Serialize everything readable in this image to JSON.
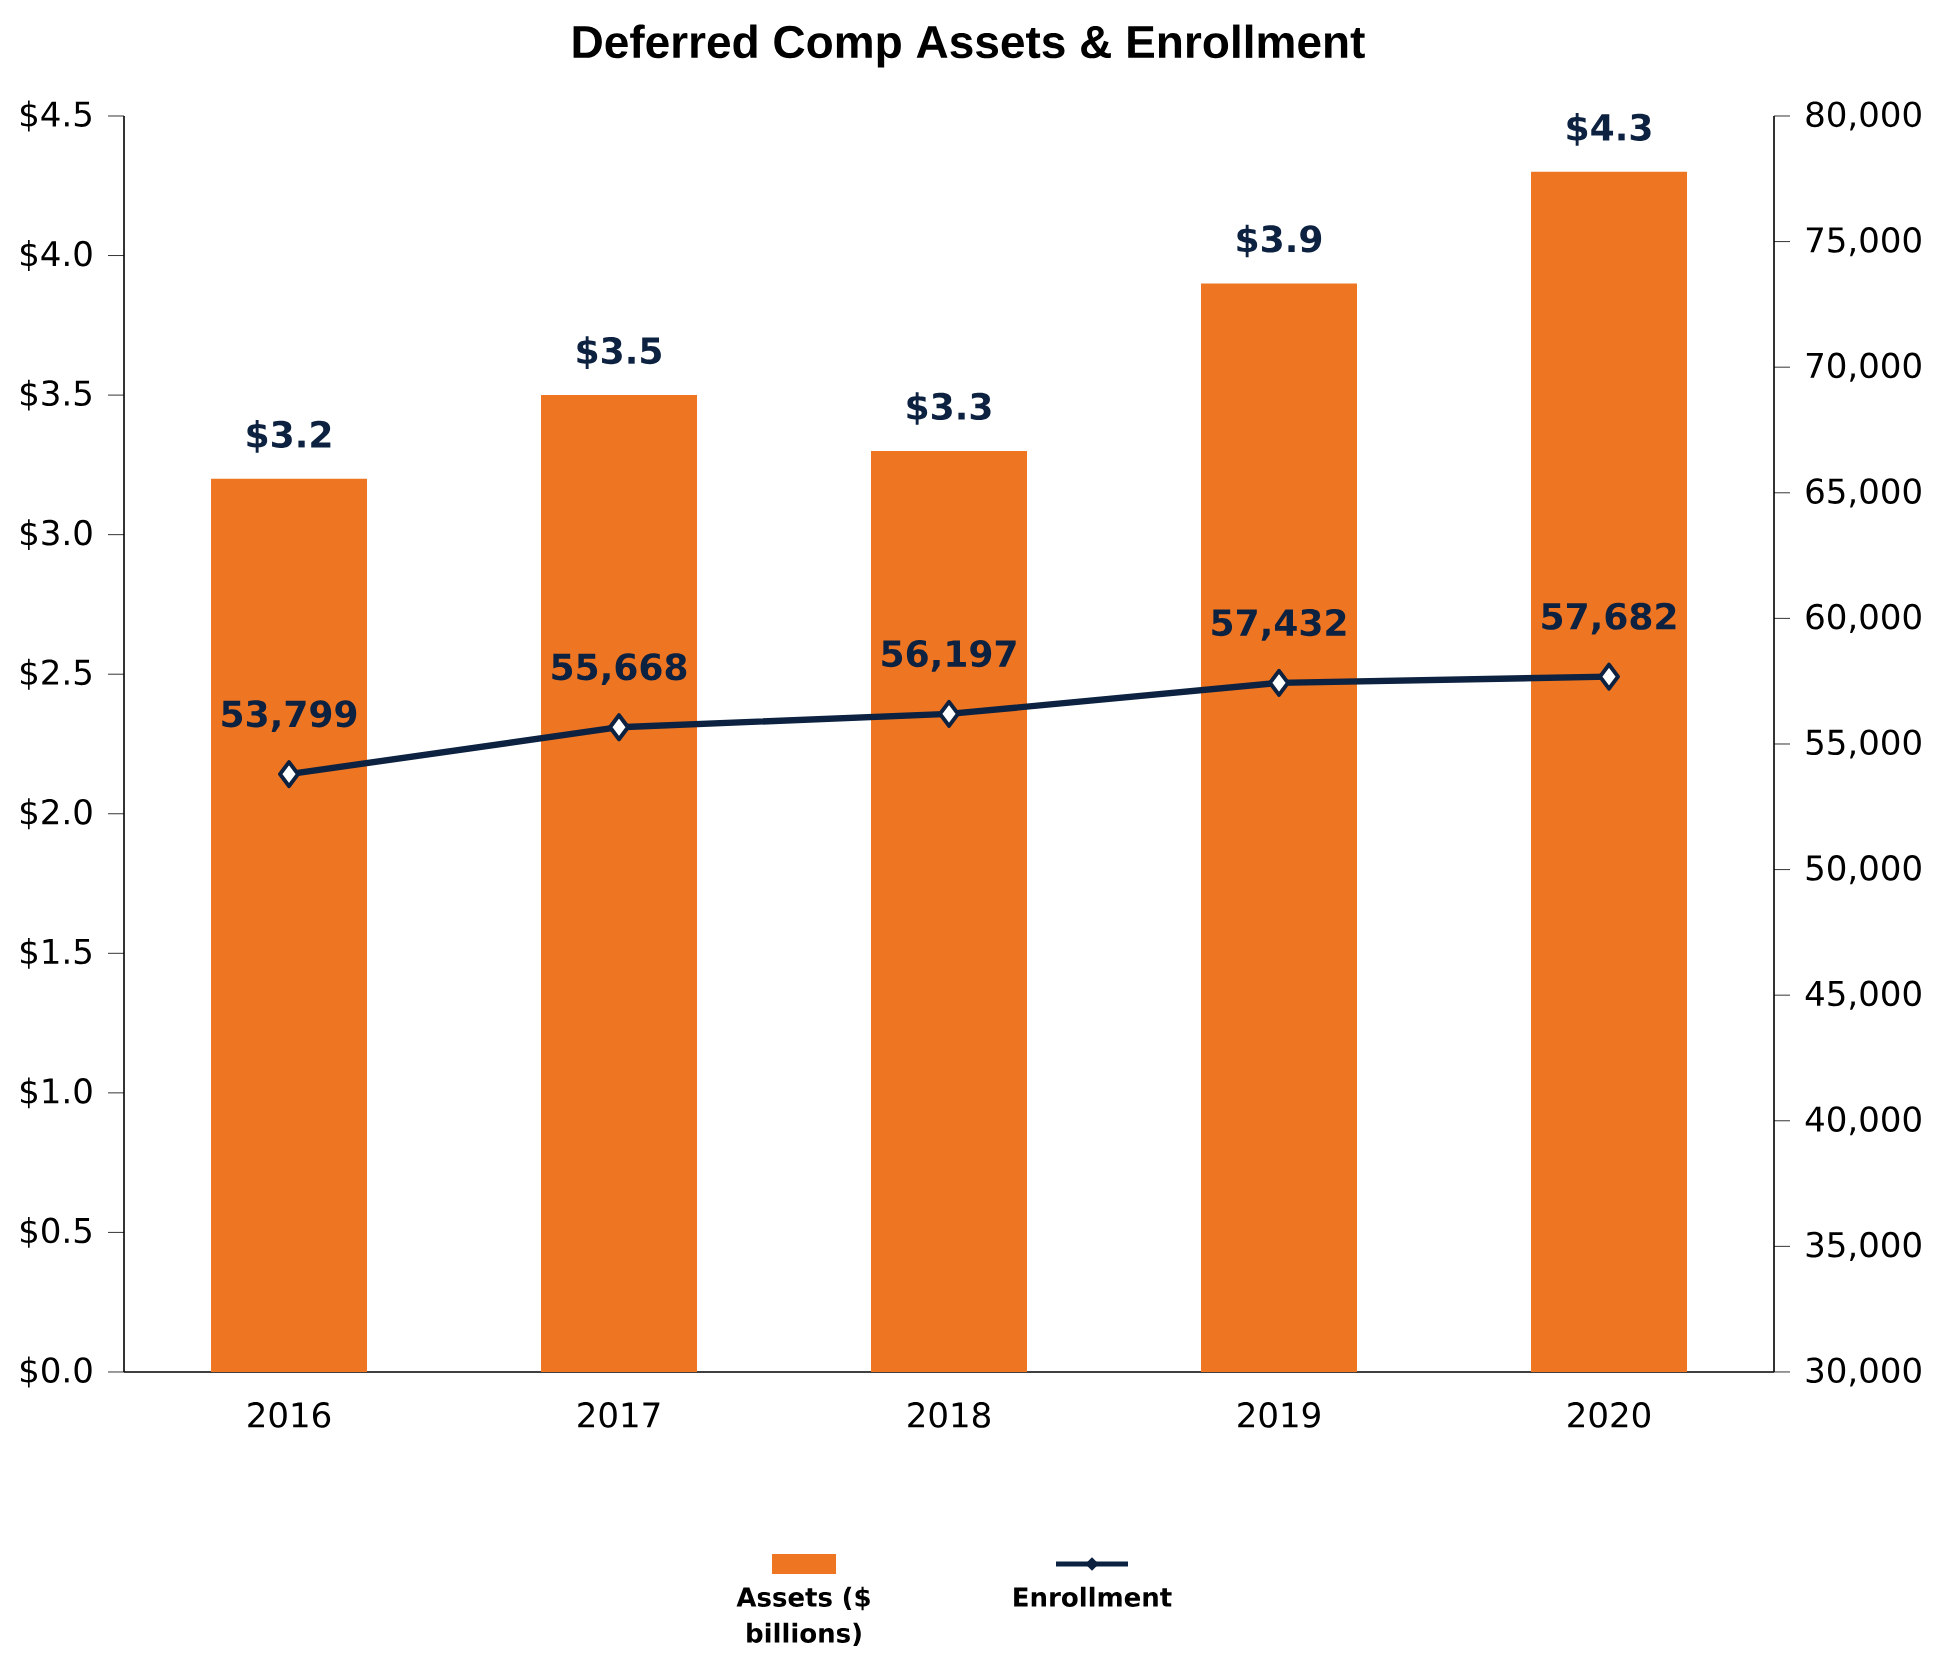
{
  "chart_data": {
    "type": "bar",
    "title": "Deferred Comp Assets & Enrollment",
    "categories": [
      "2016",
      "2017",
      "2018",
      "2019",
      "2020"
    ],
    "ylim": [
      0,
      4.5
    ],
    "yticks": [
      {
        "value": 0,
        "label": "$0.0"
      },
      {
        "value": 0.5,
        "label": "$0.5"
      },
      {
        "value": 1,
        "label": "$1.0"
      },
      {
        "value": 1.5,
        "label": "$1.5"
      },
      {
        "value": 2,
        "label": "$2.0"
      },
      {
        "value": 2.5,
        "label": "$2.5"
      },
      {
        "value": 3,
        "label": "$3.0"
      },
      {
        "value": 3.5,
        "label": "$3.5"
      },
      {
        "value": 4,
        "label": "$4.0"
      },
      {
        "value": 4.5,
        "label": "$4.5"
      }
    ],
    "y2lim": [
      30000,
      80000
    ],
    "y2ticks": [
      {
        "value": 30000,
        "label": "30,000"
      },
      {
        "value": 35000,
        "label": "35,000"
      },
      {
        "value": 40000,
        "label": "40,000"
      },
      {
        "value": 45000,
        "label": "45,000"
      },
      {
        "value": 50000,
        "label": "50,000"
      },
      {
        "value": 55000,
        "label": "55,000"
      },
      {
        "value": 60000,
        "label": "60,000"
      },
      {
        "value": 65000,
        "label": "65,000"
      },
      {
        "value": 70000,
        "label": "70,000"
      },
      {
        "value": 75000,
        "label": "75,000"
      },
      {
        "value": 80000,
        "label": "80,000"
      }
    ],
    "legend": "bottom",
    "grid": false,
    "series": [
      {
        "name": "Assets ($ billions)",
        "color": "#ee7623",
        "values": [
          3.2,
          3.5,
          3.3,
          3.9,
          4.3
        ],
        "value_labels": [
          "$3.2",
          "$3.5",
          "$3.3",
          "$3.9",
          "$4.3"
        ]
      },
      {
        "name": "Enrollment",
        "type": "line",
        "axis": "y2",
        "color": "#0d2240",
        "marker": "diamond",
        "values": [
          53799,
          55668,
          56197,
          57432,
          57682
        ],
        "value_labels": [
          "53,799",
          "55,668",
          "56,197",
          "57,432",
          "57,682"
        ]
      }
    ]
  }
}
